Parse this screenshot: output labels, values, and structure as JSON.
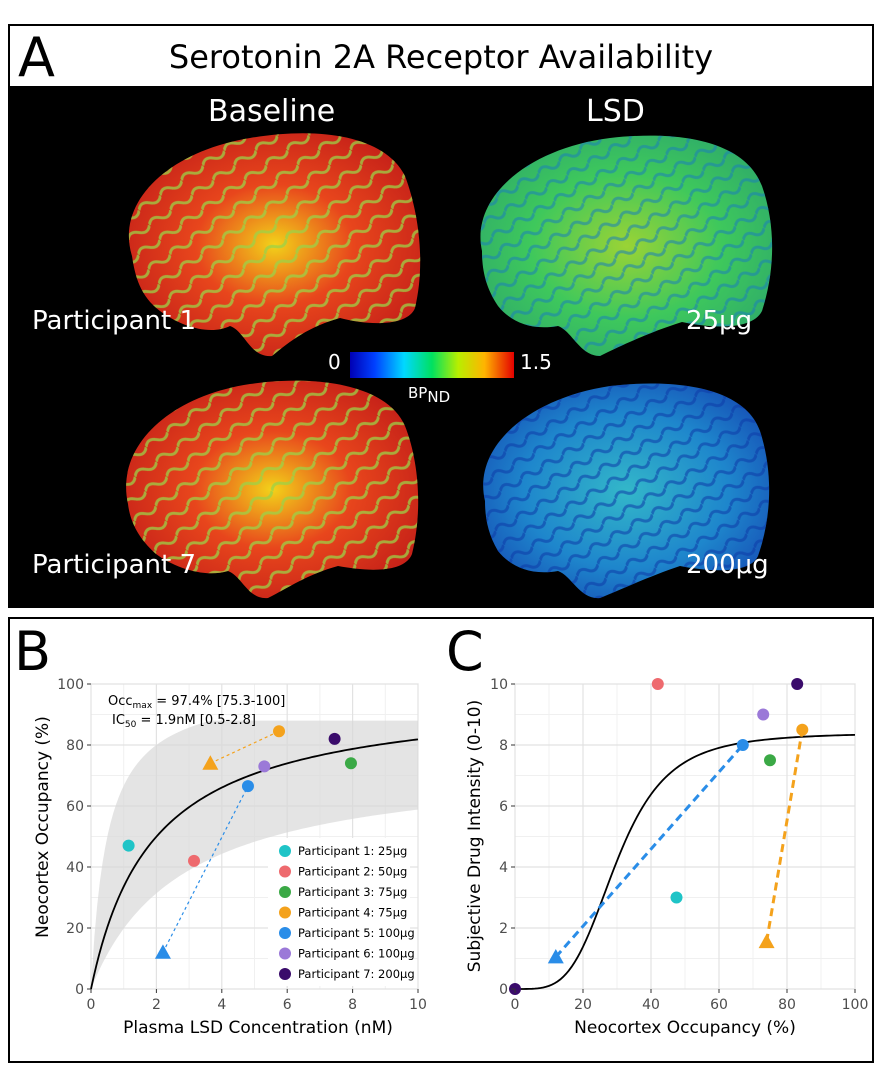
{
  "panelA": {
    "letter": "A",
    "title": "Serotonin 2A Receptor Availability",
    "col_baseline": "Baseline",
    "col_lsd": "LSD",
    "participant1": "Participant 1",
    "participant7": "Participant 7",
    "dose1": "25μg",
    "dose7": "200μg",
    "colorbar": {
      "min": "0",
      "max": "1.5",
      "label": "BP",
      "label_sub": "ND"
    }
  },
  "chart_data": [
    {
      "type": "scatter",
      "panel": "B",
      "xlabel": "Plasma LSD Concentration (nM)",
      "ylabel": "Neocortex Occupancy (%)",
      "xlim": [
        0,
        10
      ],
      "ylim": [
        0,
        100
      ],
      "xticks": [
        0,
        2,
        4,
        6,
        8,
        10
      ],
      "yticks": [
        0,
        20,
        40,
        60,
        80,
        100
      ],
      "grid": true,
      "legend_position": "bottom-right",
      "annotation": {
        "occ_prefix": "Occ",
        "occ_sub": "max",
        "occ_value": " = 97.4% [75.3-100]",
        "ic_prefix": "IC",
        "ic_sub": "50",
        "ic_value": " = 1.9nM [0.5-2.8]"
      },
      "fit": {
        "model": "emax",
        "occmax": 97.4,
        "ic50": 1.9
      },
      "series": [
        {
          "name": "Participant 1: 25μg",
          "color": "#1FC4C7",
          "points": [
            {
              "x": 1.15,
              "y": 47,
              "shape": "circle"
            }
          ]
        },
        {
          "name": "Participant 2: 50μg",
          "color": "#EE6A6E",
          "points": [
            {
              "x": 3.15,
              "y": 42,
              "shape": "circle"
            }
          ]
        },
        {
          "name": "Participant 3: 75μg",
          "color": "#3BA946",
          "points": [
            {
              "x": 7.95,
              "y": 74,
              "shape": "circle"
            }
          ]
        },
        {
          "name": "Participant 4: 75μg",
          "color": "#F4A21C",
          "points": [
            {
              "x": 3.65,
              "y": 74,
              "shape": "triangle"
            },
            {
              "x": 5.75,
              "y": 84.5,
              "shape": "circle"
            }
          ],
          "connected": true
        },
        {
          "name": "Participant 5: 100μg",
          "color": "#2A8DE8",
          "points": [
            {
              "x": 2.2,
              "y": 12,
              "shape": "triangle"
            },
            {
              "x": 4.8,
              "y": 66.5,
              "shape": "circle"
            }
          ],
          "connected": true
        },
        {
          "name": "Participant 6: 100μg",
          "color": "#9B79D8",
          "points": [
            {
              "x": 5.3,
              "y": 73,
              "shape": "circle"
            }
          ]
        },
        {
          "name": "Participant 7: 200μg",
          "color": "#3A0B6B",
          "points": [
            {
              "x": 7.45,
              "y": 82,
              "shape": "circle"
            }
          ]
        }
      ]
    },
    {
      "type": "scatter",
      "panel": "C",
      "xlabel": "Neocortex Occupancy (%)",
      "ylabel": "Subjective Drug Intensity (0-10)",
      "xlim": [
        0,
        100
      ],
      "ylim": [
        0,
        10
      ],
      "xticks": [
        0,
        20,
        40,
        60,
        80,
        100
      ],
      "yticks": [
        0,
        2,
        4,
        6,
        8,
        10
      ],
      "grid": true,
      "fit": {
        "model": "sigmoid",
        "max": 8.4,
        "ec50": 30,
        "hill": 4
      },
      "series": [
        {
          "color": "#1FC4C7",
          "points": [
            {
              "x": 47.5,
              "y": 3.0,
              "shape": "circle"
            }
          ]
        },
        {
          "color": "#EE6A6E",
          "points": [
            {
              "x": 42,
              "y": 10.0,
              "shape": "circle"
            }
          ]
        },
        {
          "color": "#3BA946",
          "points": [
            {
              "x": 75,
              "y": 7.5,
              "shape": "circle"
            }
          ]
        },
        {
          "color": "#F4A21C",
          "points": [
            {
              "x": 74,
              "y": 1.55,
              "shape": "triangle"
            },
            {
              "x": 84.5,
              "y": 8.5,
              "shape": "circle"
            }
          ],
          "connected": true
        },
        {
          "color": "#2A8DE8",
          "points": [
            {
              "x": 12,
              "y": 1.05,
              "shape": "triangle"
            },
            {
              "x": 67,
              "y": 8.0,
              "shape": "circle"
            }
          ],
          "connected": true
        },
        {
          "color": "#9B79D8",
          "points": [
            {
              "x": 73,
              "y": 9.0,
              "shape": "circle"
            }
          ]
        },
        {
          "color": "#3A0B6B",
          "points": [
            {
              "x": 83,
              "y": 10.0,
              "shape": "circle"
            },
            {
              "x": 0,
              "y": 0,
              "shape": "circle"
            }
          ]
        }
      ]
    }
  ]
}
